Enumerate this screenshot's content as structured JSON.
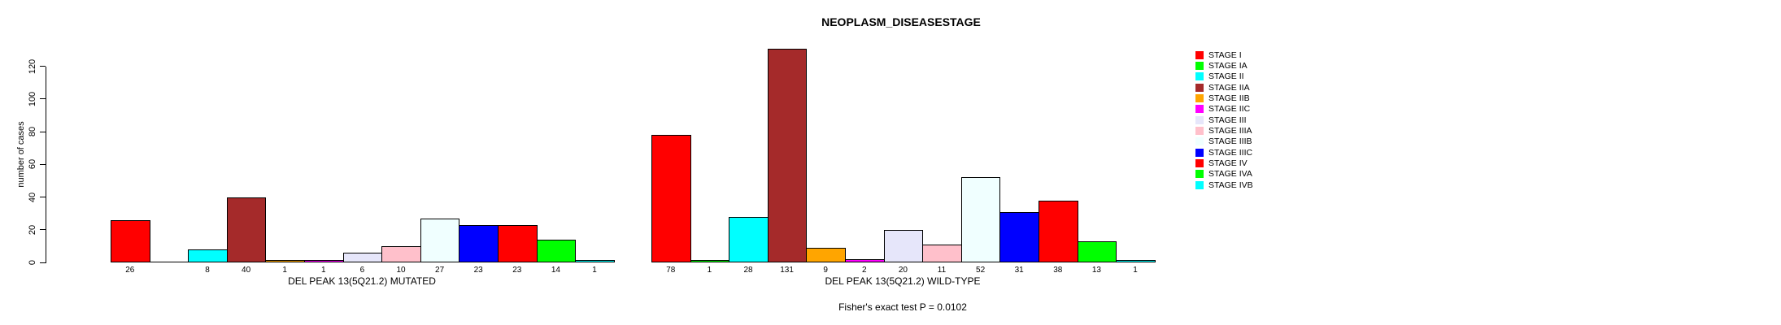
{
  "title": "NEOPLASM_DISEASESTAGE",
  "footnote": "Fisher's exact test P = 0.0102",
  "chart_data": {
    "type": "bar",
    "title": "NEOPLASM_DISEASESTAGE",
    "xlabel": "",
    "ylabel": "number of cases",
    "y_ticks": [
      0,
      20,
      40,
      60,
      80,
      100,
      120
    ],
    "ylim": [
      0,
      131
    ],
    "grid": false,
    "legend_position": "right",
    "categories": [
      "STAGE I",
      "STAGE IA",
      "STAGE II",
      "STAGE IIA",
      "STAGE IIB",
      "STAGE IIC",
      "STAGE III",
      "STAGE IIIA",
      "STAGE IIIB",
      "STAGE IIIC",
      "STAGE IV",
      "STAGE IVA",
      "STAGE IVB"
    ],
    "colors": [
      "#FF0000",
      "#00FF00",
      "#00FFFF",
      "#A52A2A",
      "#FFA500",
      "#FF00FF",
      "#E6E6FA",
      "#FFC0CB",
      "#F0FFFF",
      "#0000FF",
      "#FF0000",
      "#00FF00",
      "#00FFFF"
    ],
    "groups": [
      {
        "label": "DEL PEAK 13(5Q21.2) MUTATED",
        "values": [
          26,
          0,
          8,
          40,
          1,
          1,
          6,
          10,
          27,
          23,
          23,
          14,
          1
        ],
        "bar_labels": [
          "26",
          "",
          "8",
          "40",
          "1",
          "1",
          "6",
          "10",
          "27",
          "23",
          "23",
          "14",
          "1"
        ]
      },
      {
        "label": "DEL PEAK 13(5Q21.2) WILD-TYPE",
        "values": [
          78,
          1,
          28,
          131,
          9,
          2,
          20,
          11,
          52,
          31,
          38,
          13,
          1
        ],
        "bar_labels": [
          "78",
          "1",
          "28",
          "131",
          "9",
          "2",
          "20",
          "11",
          "52",
          "31",
          "38",
          "13",
          "1"
        ]
      }
    ],
    "annotation": "Fisher's exact test P = 0.0102"
  }
}
